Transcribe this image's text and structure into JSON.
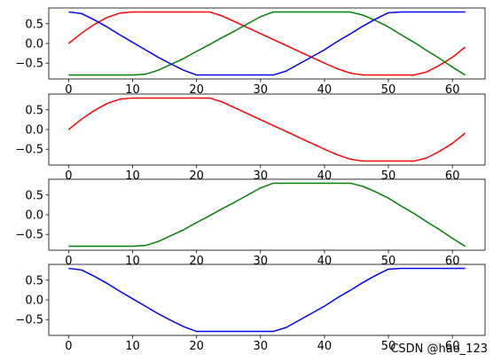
{
  "chart_data": [
    {
      "type": "line",
      "xlim": [
        -3.1,
        65.1
      ],
      "ylim": [
        -0.9,
        0.9
      ],
      "xticks": [
        0,
        10,
        20,
        30,
        40,
        50,
        60
      ],
      "xtick_labels": [
        "0",
        "10",
        "20",
        "30",
        "40",
        "50",
        "60"
      ],
      "yticks": [
        0.5,
        0.0,
        -0.5
      ],
      "ytick_labels": [
        "0.5",
        "0.0",
        "−0.5"
      ],
      "grid": false,
      "legend": "none",
      "series": [
        {
          "color": "#ff0000",
          "x": [
            0,
            2,
            4,
            6,
            8,
            10,
            12,
            14,
            16,
            18,
            20,
            22,
            24,
            26,
            28,
            30,
            32,
            34,
            36,
            38,
            40,
            42,
            44,
            46,
            48,
            50,
            52,
            54,
            56,
            58,
            60,
            62
          ],
          "y": [
            0.0,
            0.26,
            0.48,
            0.66,
            0.77,
            0.8,
            0.8,
            0.8,
            0.8,
            0.8,
            0.8,
            0.8,
            0.7,
            0.55,
            0.4,
            0.25,
            0.1,
            -0.05,
            -0.2,
            -0.35,
            -0.5,
            -0.64,
            -0.75,
            -0.8,
            -0.8,
            -0.8,
            -0.8,
            -0.8,
            -0.72,
            -0.55,
            -0.35,
            -0.09
          ]
        },
        {
          "color": "#008000",
          "x": [
            0,
            2,
            4,
            6,
            8,
            10,
            12,
            14,
            16,
            18,
            20,
            22,
            24,
            26,
            28,
            30,
            32,
            34,
            36,
            38,
            40,
            42,
            44,
            46,
            48,
            50,
            52,
            54,
            56,
            58,
            60,
            62
          ],
          "y": [
            -0.8,
            -0.8,
            -0.8,
            -0.8,
            -0.8,
            -0.8,
            -0.78,
            -0.68,
            -0.53,
            -0.38,
            -0.2,
            -0.03,
            0.15,
            0.32,
            0.5,
            0.68,
            0.8,
            0.8,
            0.8,
            0.8,
            0.8,
            0.8,
            0.8,
            0.72,
            0.58,
            0.42,
            0.22,
            0.03,
            -0.18,
            -0.38,
            -0.6,
            -0.8
          ]
        },
        {
          "color": "#0000ff",
          "x": [
            0,
            2,
            4,
            6,
            8,
            10,
            12,
            14,
            16,
            18,
            20,
            22,
            24,
            26,
            28,
            30,
            32,
            34,
            36,
            38,
            40,
            42,
            44,
            46,
            48,
            50,
            52,
            54,
            56,
            58,
            60,
            62
          ],
          "y": [
            0.8,
            0.76,
            0.6,
            0.42,
            0.22,
            0.03,
            -0.16,
            -0.35,
            -0.52,
            -0.68,
            -0.8,
            -0.8,
            -0.8,
            -0.8,
            -0.8,
            -0.8,
            -0.8,
            -0.7,
            -0.52,
            -0.34,
            -0.16,
            0.05,
            0.24,
            0.44,
            0.62,
            0.78,
            0.8,
            0.8,
            0.8,
            0.8,
            0.8,
            0.8
          ]
        }
      ]
    },
    {
      "type": "line",
      "xlim": [
        -3.1,
        65.1
      ],
      "ylim": [
        -0.9,
        0.9
      ],
      "xticks": [
        0,
        10,
        20,
        30,
        40,
        50,
        60
      ],
      "xtick_labels": [
        "0",
        "10",
        "20",
        "30",
        "40",
        "50",
        "60"
      ],
      "yticks": [
        0.5,
        0.0,
        -0.5
      ],
      "ytick_labels": [
        "0.5",
        "0.0",
        "−0.5"
      ],
      "grid": false,
      "legend": "none",
      "series": [
        {
          "color": "#ff0000",
          "x": [
            0,
            2,
            4,
            6,
            8,
            10,
            12,
            14,
            16,
            18,
            20,
            22,
            24,
            26,
            28,
            30,
            32,
            34,
            36,
            38,
            40,
            42,
            44,
            46,
            48,
            50,
            52,
            54,
            56,
            58,
            60,
            62
          ],
          "y": [
            0.0,
            0.26,
            0.48,
            0.66,
            0.77,
            0.8,
            0.8,
            0.8,
            0.8,
            0.8,
            0.8,
            0.8,
            0.7,
            0.55,
            0.4,
            0.25,
            0.1,
            -0.05,
            -0.2,
            -0.35,
            -0.5,
            -0.64,
            -0.75,
            -0.8,
            -0.8,
            -0.8,
            -0.8,
            -0.8,
            -0.72,
            -0.55,
            -0.35,
            -0.09
          ]
        }
      ]
    },
    {
      "type": "line",
      "xlim": [
        -3.1,
        65.1
      ],
      "ylim": [
        -0.9,
        0.9
      ],
      "xticks": [
        0,
        10,
        20,
        30,
        40,
        50,
        60
      ],
      "xtick_labels": [
        "0",
        "10",
        "20",
        "30",
        "40",
        "50",
        "60"
      ],
      "yticks": [
        0.5,
        0.0,
        -0.5
      ],
      "ytick_labels": [
        "0.5",
        "0.0",
        "−0.5"
      ],
      "grid": false,
      "legend": "none",
      "series": [
        {
          "color": "#008000",
          "x": [
            0,
            2,
            4,
            6,
            8,
            10,
            12,
            14,
            16,
            18,
            20,
            22,
            24,
            26,
            28,
            30,
            32,
            34,
            36,
            38,
            40,
            42,
            44,
            46,
            48,
            50,
            52,
            54,
            56,
            58,
            60,
            62
          ],
          "y": [
            -0.8,
            -0.8,
            -0.8,
            -0.8,
            -0.8,
            -0.8,
            -0.78,
            -0.68,
            -0.53,
            -0.38,
            -0.2,
            -0.03,
            0.15,
            0.32,
            0.5,
            0.68,
            0.8,
            0.8,
            0.8,
            0.8,
            0.8,
            0.8,
            0.8,
            0.72,
            0.58,
            0.42,
            0.22,
            0.03,
            -0.18,
            -0.38,
            -0.6,
            -0.8
          ]
        }
      ]
    },
    {
      "type": "line",
      "xlim": [
        -3.1,
        65.1
      ],
      "ylim": [
        -0.9,
        0.9
      ],
      "xticks": [
        0,
        10,
        20,
        30,
        40,
        50,
        60
      ],
      "xtick_labels": [
        "0",
        "10",
        "20",
        "30",
        "40",
        "50",
        "60"
      ],
      "yticks": [
        0.5,
        0.0,
        -0.5
      ],
      "ytick_labels": [
        "0.5",
        "0.0",
        "−0.5"
      ],
      "grid": false,
      "legend": "none",
      "series": [
        {
          "color": "#0000ff",
          "x": [
            0,
            2,
            4,
            6,
            8,
            10,
            12,
            14,
            16,
            18,
            20,
            22,
            24,
            26,
            28,
            30,
            32,
            34,
            36,
            38,
            40,
            42,
            44,
            46,
            48,
            50,
            52,
            54,
            56,
            58,
            60,
            62
          ],
          "y": [
            0.8,
            0.76,
            0.6,
            0.42,
            0.22,
            0.03,
            -0.16,
            -0.35,
            -0.52,
            -0.68,
            -0.8,
            -0.8,
            -0.8,
            -0.8,
            -0.8,
            -0.8,
            -0.8,
            -0.7,
            -0.52,
            -0.34,
            -0.16,
            0.05,
            0.24,
            0.44,
            0.62,
            0.78,
            0.8,
            0.8,
            0.8,
            0.8,
            0.8,
            0.8
          ]
        }
      ]
    }
  ],
  "watermark": "CSDN @hao_123"
}
